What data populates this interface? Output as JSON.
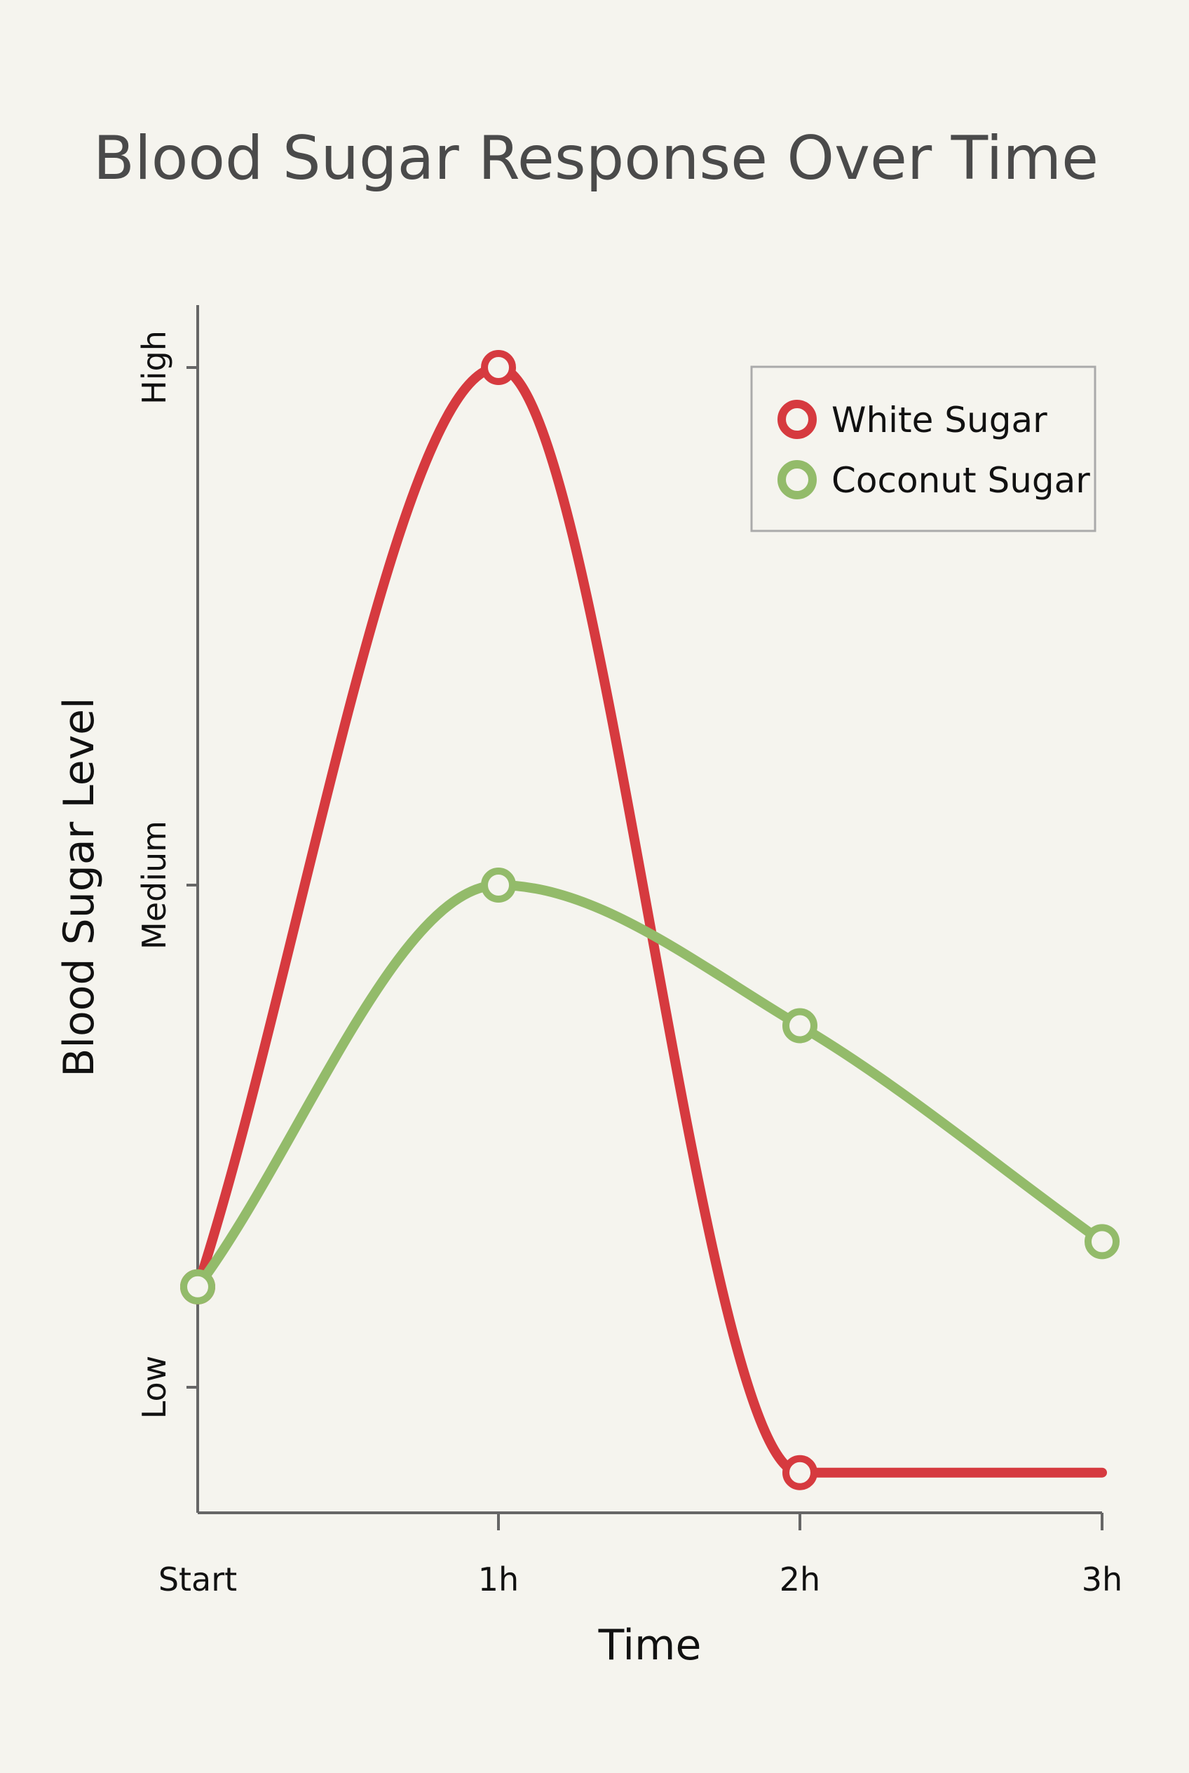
{
  "chart_data": {
    "type": "line",
    "title": "Blood Sugar Response Over Time",
    "xlabel": "Time",
    "ylabel": "Blood Sugar Level",
    "categories": [
      "Start",
      "1h",
      "2h",
      "3h"
    ],
    "y_ticks": [
      {
        "label": "Low",
        "value": 1
      },
      {
        "label": "Medium",
        "value": 2
      },
      {
        "label": "High",
        "value": 3
      }
    ],
    "ylim": [
      0.7,
      3.15
    ],
    "grid": false,
    "legend_position": "top-right",
    "series": [
      {
        "name": "White Sugar",
        "color": "#d63a3f",
        "values": [
          1.2,
          3.0,
          0.83,
          0.83
        ],
        "markers": [
          true,
          true,
          true,
          false
        ]
      },
      {
        "name": "Coconut Sugar",
        "color": "#93bb6a",
        "values": [
          1.2,
          2.0,
          1.72,
          1.29
        ],
        "markers": [
          true,
          true,
          true,
          true
        ]
      }
    ]
  }
}
